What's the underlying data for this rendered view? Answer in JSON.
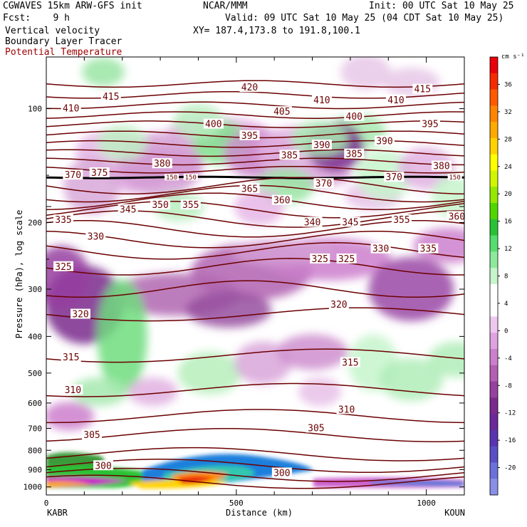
{
  "header": {
    "model": "CGWAVES 15km ARW-GFS init",
    "org": "NCAR/MMM",
    "init": "Init: 00 UTC Sat 10 May 25",
    "fcst": "Fcst:    9 h",
    "valid": "Valid: 09 UTC Sat 10 May 25 (04 CDT Sat 10 May 25)",
    "field1": "Vertical velocity",
    "field2": "Boundary Layer Tracer",
    "field3": "Potential Temperature",
    "xy": "XY= 187.4,173.8 to 191.8,100.1"
  },
  "colors": {
    "theta": "#6b0000",
    "theta_label": "#a00000",
    "field3_text": "#a00000"
  },
  "chart_data": {
    "type": "heatmap",
    "title": "Vertical velocity / Boundary Layer Tracer / Potential Temperature cross section",
    "xlabel": "Distance (km)",
    "ylabel": "Pressure (hPa), log scale",
    "y_scale": "log",
    "x_ticks": [
      "0",
      "500",
      "1000"
    ],
    "x_tick_values": [
      0,
      500,
      1000
    ],
    "xlim": [
      0,
      1100
    ],
    "y_ticks": [
      "100",
      "200",
      "300",
      "400",
      "500",
      "600",
      "700",
      "800",
      "900",
      "1000"
    ],
    "y_tick_values": [
      100,
      200,
      300,
      400,
      500,
      600,
      700,
      800,
      900,
      1000
    ],
    "endpoints": {
      "left": "KABR",
      "right": "KOUN"
    },
    "colorbar": {
      "units": "cm s⁻¹",
      "labels": [
        "36",
        "32",
        "28",
        "24",
        "20",
        "16",
        "12",
        "8",
        "4",
        "0",
        "-4",
        "-8",
        "-12",
        "-16",
        "-20"
      ],
      "colors": [
        "#e8000b",
        "#f52a00",
        "#ff5a00",
        "#ff8400",
        "#ffaa00",
        "#ffd200",
        "#ffff00",
        "#d2f500",
        "#96e800",
        "#50d700",
        "#2ac235",
        "#55de6f",
        "#8de99b",
        "#c6f4cb",
        "#ffffff",
        "#ffffff",
        "#efc8ef",
        "#e0a2e0",
        "#cc7fcc",
        "#b35fb3",
        "#9640a0",
        "#7a2a8c",
        "#6a289a",
        "#5a34b0",
        "#5a4ec6",
        "#6c70da",
        "#8a90e6"
      ]
    },
    "theta_labels": [
      {
        "text": "420",
        "x": 535,
        "p": 88
      },
      {
        "text": "415",
        "x": 170,
        "p": 93
      },
      {
        "text": "415",
        "x": 990,
        "p": 89
      },
      {
        "text": "410",
        "x": 65,
        "p": 100
      },
      {
        "text": "410",
        "x": 725,
        "p": 95
      },
      {
        "text": "410",
        "x": 920,
        "p": 95
      },
      {
        "text": "405",
        "x": 620,
        "p": 102
      },
      {
        "text": "400",
        "x": 440,
        "p": 110
      },
      {
        "text": "400",
        "x": 810,
        "p": 105
      },
      {
        "text": "395",
        "x": 535,
        "p": 118
      },
      {
        "text": "395",
        "x": 1010,
        "p": 110
      },
      {
        "text": "390",
        "x": 725,
        "p": 125
      },
      {
        "text": "390",
        "x": 890,
        "p": 122
      },
      {
        "text": "385",
        "x": 640,
        "p": 133
      },
      {
        "text": "385",
        "x": 810,
        "p": 132
      },
      {
        "text": "380",
        "x": 305,
        "p": 140
      },
      {
        "text": "380",
        "x": 1040,
        "p": 142
      },
      {
        "text": "375",
        "x": 140,
        "p": 148
      },
      {
        "text": "370",
        "x": 70,
        "p": 150
      },
      {
        "text": "370",
        "x": 730,
        "p": 158
      },
      {
        "text": "370",
        "x": 915,
        "p": 152
      },
      {
        "text": "365",
        "x": 535,
        "p": 163
      },
      {
        "text": "360",
        "x": 620,
        "p": 175
      },
      {
        "text": "360",
        "x": 1080,
        "p": 193
      },
      {
        "text": "355",
        "x": 380,
        "p": 180
      },
      {
        "text": "355",
        "x": 935,
        "p": 197
      },
      {
        "text": "350",
        "x": 300,
        "p": 180
      },
      {
        "text": "345",
        "x": 215,
        "p": 185
      },
      {
        "text": "345",
        "x": 800,
        "p": 200
      },
      {
        "text": "340",
        "x": 700,
        "p": 200
      },
      {
        "text": "335",
        "x": 45,
        "p": 197
      },
      {
        "text": "335",
        "x": 1005,
        "p": 235
      },
      {
        "text": "330",
        "x": 130,
        "p": 218
      },
      {
        "text": "330",
        "x": 880,
        "p": 235
      },
      {
        "text": "325",
        "x": 45,
        "p": 262
      },
      {
        "text": "325",
        "x": 720,
        "p": 250
      },
      {
        "text": "325",
        "x": 790,
        "p": 250
      },
      {
        "text": "320",
        "x": 90,
        "p": 350
      },
      {
        "text": "320",
        "x": 770,
        "p": 330
      },
      {
        "text": "315",
        "x": 65,
        "p": 455
      },
      {
        "text": "315",
        "x": 800,
        "p": 470
      },
      {
        "text": "310",
        "x": 70,
        "p": 555
      },
      {
        "text": "310",
        "x": 790,
        "p": 625
      },
      {
        "text": "305",
        "x": 120,
        "p": 730
      },
      {
        "text": "305",
        "x": 710,
        "p": 700
      },
      {
        "text": "300",
        "x": 150,
        "p": 880
      },
      {
        "text": "300",
        "x": 620,
        "p": 920
      }
    ],
    "tropopause_labels": [
      {
        "text": "150",
        "x": 330,
        "p": 152
      },
      {
        "text": "150",
        "x": 380,
        "p": 152
      },
      {
        "text": "150",
        "x": 1075,
        "p": 152
      }
    ]
  }
}
